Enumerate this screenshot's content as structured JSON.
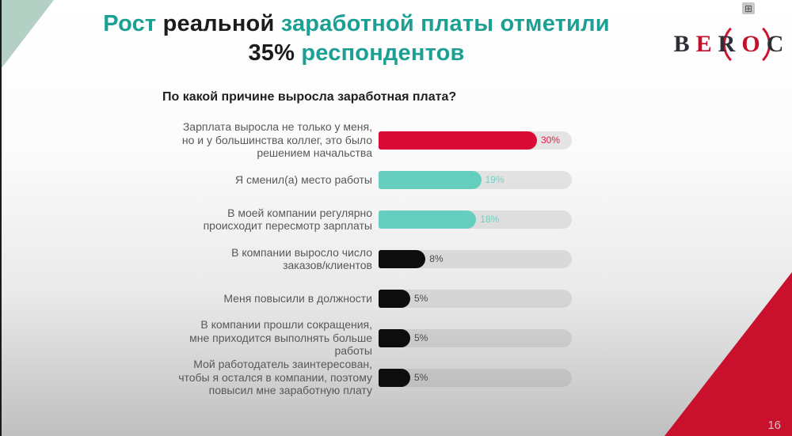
{
  "slide": {
    "page_number": "16"
  },
  "icons": {
    "fullscreen": "⊞"
  },
  "logo": {
    "name": "BEROC",
    "letters": [
      {
        "ch": "B",
        "red": false
      },
      {
        "ch": "E",
        "red": true
      },
      {
        "ch": "R",
        "red": false
      },
      {
        "ch": "O",
        "red": true
      },
      {
        "ch": "C",
        "red": false
      }
    ],
    "accent": "#c2122b",
    "text_color": "#2f2f38"
  },
  "title": {
    "teal": "#1ba093",
    "dark": "#1c1c1c",
    "lines": [
      [
        {
          "text": "Рост ",
          "color": "teal"
        },
        {
          "text": "реальной ",
          "color": "dark"
        },
        {
          "text": "заработной платы отметили",
          "color": "teal"
        }
      ],
      [
        {
          "text": "35% ",
          "color": "dark"
        },
        {
          "text": "респондентов",
          "color": "teal"
        }
      ]
    ]
  },
  "chart_data": {
    "type": "bar",
    "orientation": "horizontal",
    "title": "По какой причине выросла заработная плата?",
    "categories": [
      "Зарплата выросла не только у меня,\nно и у большинства коллег, это было\nрешением начальства",
      "Я сменил(а) место работы",
      "В моей компании регулярно\nпроисходит пересмотр зарплаты",
      "В компании выросло число\nзаказов/клиентов",
      "Меня повысили в должности",
      "В компании прошли сокращения,\nмне приходится выполнять больше\nработы",
      "Мой работодатель заинтересован,\nчтобы я остался в компании, поэтому\nповысил мне заработную плату"
    ],
    "values": [
      30,
      19,
      18,
      8,
      5,
      5,
      5
    ],
    "value_labels": [
      "30%",
      "19%",
      "18%",
      "8%",
      "5%",
      "5%",
      "5%"
    ],
    "bar_color_keys": [
      "red",
      "teal",
      "teal",
      "black",
      "black",
      "black",
      "black"
    ],
    "bar_palette": {
      "red": "#da0c37",
      "teal": "#65cebe",
      "black": "#0d0d0d"
    },
    "value_text_palette": {
      "red": "#e0214a",
      "teal": "#74d0c2",
      "black": "#4a4a4a"
    },
    "xlim": [
      0,
      37
    ],
    "grid": false,
    "legend": false,
    "track_visible": true
  }
}
